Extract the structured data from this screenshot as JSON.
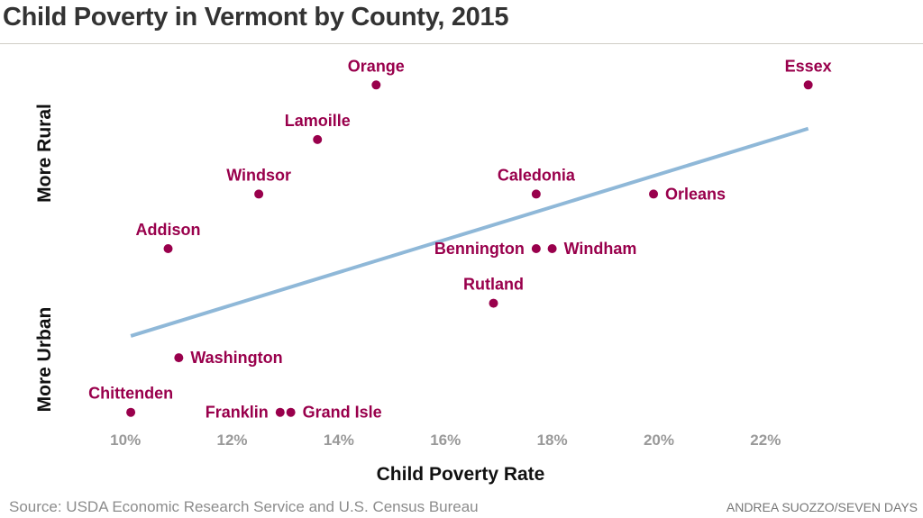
{
  "page": {
    "title": "Child Poverty in Vermont by County, 2015",
    "source": "Source: USDA Economic Research Service and U.S. Census Bureau",
    "credit": "ANDREA SUOZZO/SEVEN DAYS"
  },
  "chart_data": {
    "type": "scatter",
    "title": "Child Poverty in Vermont by County, 2015",
    "xlabel": "Child Poverty Rate",
    "ylabel_top": "More Rural",
    "ylabel_bottom": "More Urban",
    "xlim": [
      9,
      23.6
    ],
    "ylim": [
      0.5,
      7.5
    ],
    "xticks": [
      10,
      12,
      14,
      16,
      18,
      20,
      22
    ],
    "xtick_labels": [
      "10%",
      "12%",
      "14%",
      "16%",
      "18%",
      "20%",
      "22%"
    ],
    "grid": false,
    "colors": {
      "point": "#99004c",
      "trend": "#8fb8d8",
      "tick": "#999999",
      "axis_label": "#111111"
    },
    "points": [
      {
        "name": "Orange",
        "x": 14.7,
        "y": 7,
        "label_pos": "top"
      },
      {
        "name": "Essex",
        "x": 22.8,
        "y": 7,
        "label_pos": "top"
      },
      {
        "name": "Lamoille",
        "x": 13.6,
        "y": 6,
        "label_pos": "top"
      },
      {
        "name": "Windsor",
        "x": 12.5,
        "y": 5,
        "label_pos": "top"
      },
      {
        "name": "Caledonia",
        "x": 17.7,
        "y": 5,
        "label_pos": "top"
      },
      {
        "name": "Orleans",
        "x": 19.9,
        "y": 5,
        "label_pos": "right"
      },
      {
        "name": "Addison",
        "x": 10.8,
        "y": 4,
        "label_pos": "top"
      },
      {
        "name": "Bennington",
        "x": 17.7,
        "y": 4,
        "label_pos": "left"
      },
      {
        "name": "Windham",
        "x": 18.0,
        "y": 4,
        "label_pos": "right"
      },
      {
        "name": "Rutland",
        "x": 16.9,
        "y": 3,
        "label_pos": "top"
      },
      {
        "name": "Washington",
        "x": 11.0,
        "y": 2,
        "label_pos": "right"
      },
      {
        "name": "Chittenden",
        "x": 10.1,
        "y": 1,
        "label_pos": "top"
      },
      {
        "name": "Franklin",
        "x": 12.9,
        "y": 1,
        "label_pos": "left"
      },
      {
        "name": "Grand Isle",
        "x": 13.1,
        "y": 1,
        "label_pos": "right"
      }
    ],
    "trendline": {
      "x": [
        10.1,
        22.8
      ],
      "y": [
        2.4,
        6.2
      ]
    }
  }
}
